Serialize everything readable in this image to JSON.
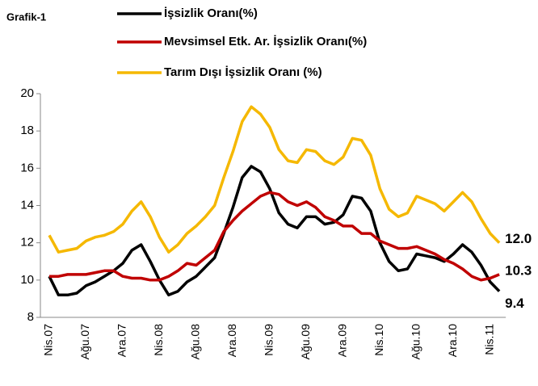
{
  "chart_data": {
    "type": "line",
    "title": "Grafik-1",
    "categories": [
      "Nis.07",
      null,
      null,
      null,
      "Ağu.07",
      null,
      null,
      null,
      "Ara.07",
      null,
      null,
      null,
      "Nis.08",
      null,
      null,
      null,
      "Ağu.08",
      null,
      null,
      null,
      "Ara.08",
      null,
      null,
      null,
      "Nis.09",
      null,
      null,
      null,
      "Ağu.09",
      null,
      null,
      null,
      "Ara.09",
      null,
      null,
      null,
      "Nis.10",
      null,
      null,
      null,
      "Ağu.10",
      null,
      null,
      null,
      "Ara.10",
      null,
      null,
      null,
      "Nis.11",
      null
    ],
    "series": [
      {
        "name": "İşsizlik Oranı(%)",
        "color": "#000000",
        "values": [
          10.2,
          9.2,
          9.2,
          9.3,
          9.7,
          9.9,
          10.2,
          10.5,
          10.9,
          11.6,
          11.9,
          11.0,
          10.0,
          9.2,
          9.4,
          9.9,
          10.2,
          10.7,
          11.2,
          12.5,
          13.9,
          15.5,
          16.1,
          15.8,
          14.9,
          13.6,
          13.0,
          12.8,
          13.4,
          13.4,
          13.0,
          13.1,
          13.5,
          14.5,
          14.4,
          13.7,
          12.0,
          11.0,
          10.5,
          10.6,
          11.4,
          11.3,
          11.2,
          11.0,
          11.4,
          11.9,
          11.5,
          10.8,
          9.9,
          9.4
        ],
        "value_labels": [
          null,
          null,
          null,
          null,
          null,
          null,
          null,
          null,
          null,
          null,
          null,
          null,
          null,
          null,
          null,
          null,
          null,
          null,
          null,
          null,
          null,
          null,
          null,
          null,
          null,
          null,
          null,
          null,
          null,
          null,
          null,
          null,
          null,
          null,
          null,
          null,
          null,
          null,
          null,
          null,
          null,
          null,
          null,
          null,
          null,
          null,
          null,
          null,
          null,
          "9.4"
        ]
      },
      {
        "name": "Mevsimsel Etk. Ar. İşsizlik Oranı(%)",
        "color": "#c00000",
        "values": [
          10.2,
          10.2,
          10.3,
          10.3,
          10.3,
          10.4,
          10.5,
          10.5,
          10.2,
          10.1,
          10.1,
          10.0,
          10.0,
          10.2,
          10.5,
          10.9,
          10.8,
          11.2,
          11.6,
          12.6,
          13.2,
          13.7,
          14.1,
          14.5,
          14.7,
          14.6,
          14.2,
          14.0,
          14.2,
          13.9,
          13.4,
          13.2,
          12.9,
          12.9,
          12.5,
          12.5,
          12.1,
          11.9,
          11.7,
          11.7,
          11.8,
          11.6,
          11.4,
          11.1,
          10.9,
          10.6,
          10.2,
          10.0,
          10.1,
          10.3
        ],
        "value_labels": [
          null,
          null,
          null,
          null,
          null,
          null,
          null,
          null,
          null,
          null,
          null,
          null,
          null,
          null,
          null,
          null,
          null,
          null,
          null,
          null,
          null,
          null,
          null,
          null,
          null,
          null,
          null,
          null,
          null,
          null,
          null,
          null,
          null,
          null,
          null,
          null,
          null,
          null,
          null,
          null,
          null,
          null,
          null,
          null,
          null,
          null,
          null,
          null,
          null,
          "10.3"
        ]
      },
      {
        "name": "Tarım Dışı İşsizlik Oranı (%)",
        "color": "#f5b800",
        "values": [
          12.4,
          11.5,
          11.6,
          11.7,
          12.1,
          12.3,
          12.4,
          12.6,
          13.0,
          13.7,
          14.2,
          13.4,
          12.3,
          11.5,
          11.9,
          12.5,
          12.9,
          13.4,
          14.0,
          15.5,
          16.9,
          18.5,
          19.3,
          18.9,
          18.2,
          17.0,
          16.4,
          16.3,
          17.0,
          16.9,
          16.4,
          16.2,
          16.6,
          17.6,
          17.5,
          16.7,
          14.9,
          13.8,
          13.4,
          13.6,
          14.5,
          14.3,
          14.1,
          13.7,
          14.2,
          14.7,
          14.2,
          13.3,
          12.5,
          12.0
        ],
        "value_labels": [
          null,
          null,
          null,
          null,
          null,
          null,
          null,
          null,
          null,
          null,
          null,
          null,
          null,
          null,
          null,
          null,
          null,
          null,
          null,
          null,
          null,
          null,
          null,
          null,
          null,
          null,
          null,
          null,
          null,
          null,
          null,
          null,
          null,
          null,
          null,
          null,
          null,
          null,
          null,
          null,
          null,
          null,
          null,
          null,
          null,
          null,
          null,
          null,
          null,
          "12.0"
        ]
      }
    ],
    "ylim": [
      8,
      20
    ],
    "yticks": [
      8,
      10,
      12,
      14,
      16,
      18,
      20
    ],
    "grid": false,
    "legend": "top"
  }
}
